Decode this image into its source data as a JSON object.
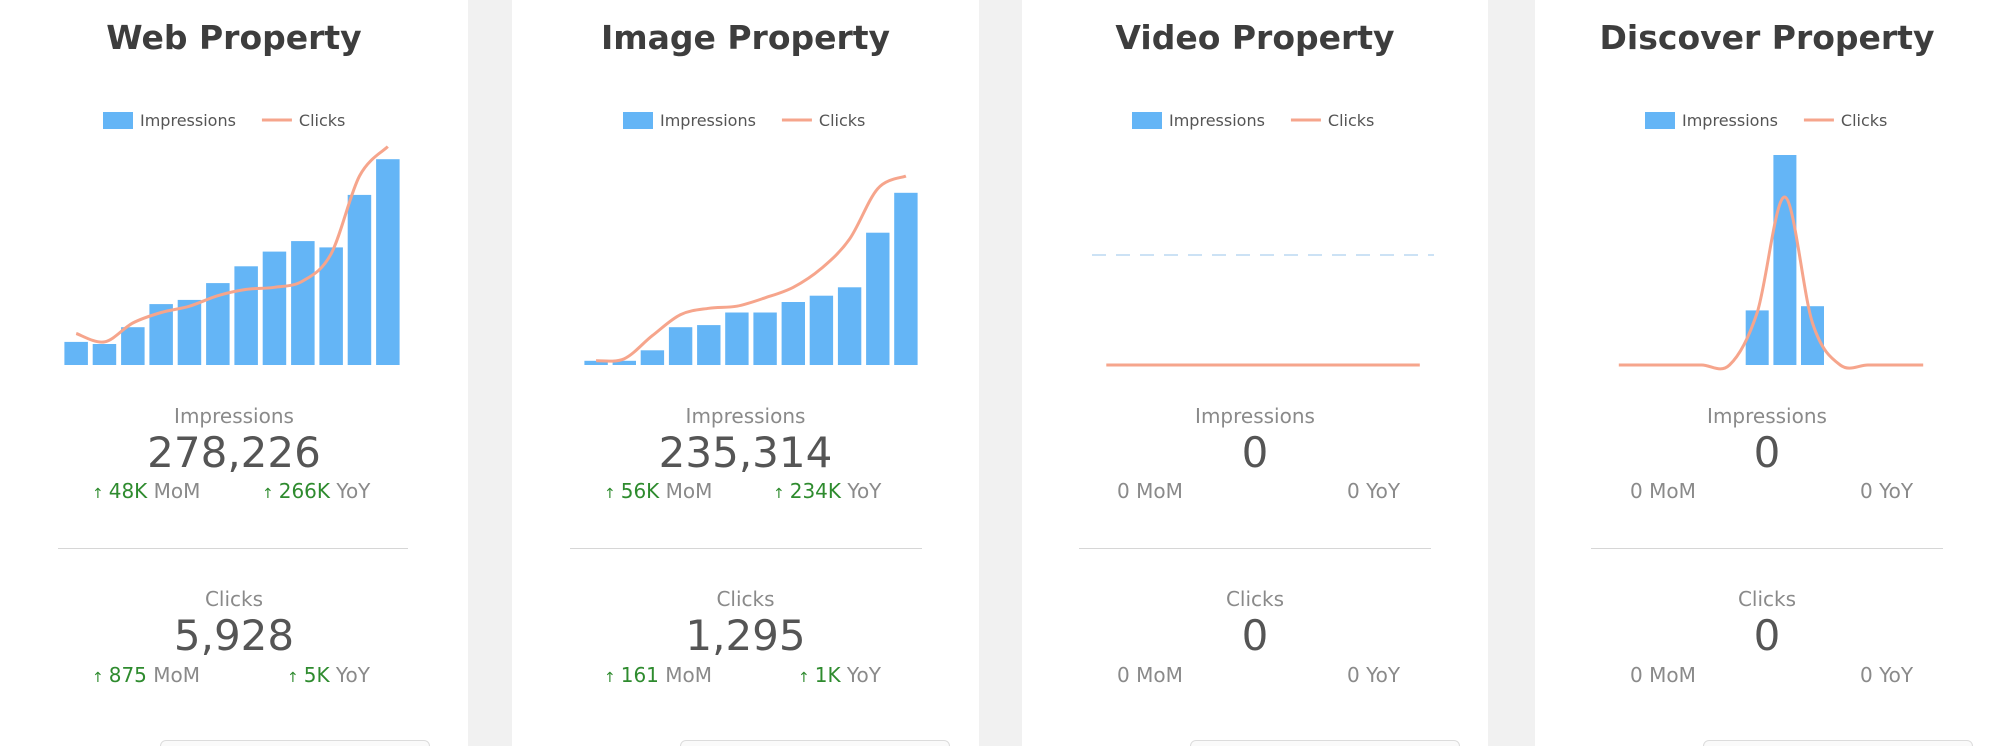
{
  "colors": {
    "impressions": "#64b5f6",
    "clicks": "#f6a58c",
    "up": "#2e8b2e"
  },
  "icons": {
    "up_arrow": "up-arrow-icon"
  },
  "cards": [
    {
      "title": "Web Property",
      "impressions": {
        "label": "Impressions",
        "value": "278,226",
        "mom": {
          "arrow": "↑",
          "num": "48K",
          "text": " MoM"
        },
        "yoy": {
          "arrow": "↑",
          "num": "266K",
          "text": " YoY"
        }
      },
      "clicks": {
        "label": "Clicks",
        "value": "5,928",
        "mom": {
          "arrow": "↑",
          "num": "875",
          "text": " MoM"
        },
        "yoy": {
          "arrow": "↑",
          "num": "5K",
          "text": " YoY"
        }
      }
    },
    {
      "title": "Image Property",
      "impressions": {
        "label": "Impressions",
        "value": "235,314",
        "mom": {
          "arrow": "↑",
          "num": "56K",
          "text": " MoM"
        },
        "yoy": {
          "arrow": "↑",
          "num": "234K",
          "text": " YoY"
        }
      },
      "clicks": {
        "label": "Clicks",
        "value": "1,295",
        "mom": {
          "arrow": "↑",
          "num": "161",
          "text": " MoM"
        },
        "yoy": {
          "arrow": "↑",
          "num": "1K",
          "text": " YoY"
        }
      }
    },
    {
      "title": "Video Property",
      "impressions": {
        "label": "Impressions",
        "value": "0",
        "mom": {
          "arrow": "",
          "num": "",
          "text": "0 MoM"
        },
        "yoy": {
          "arrow": "",
          "num": "",
          "text": "0 YoY"
        }
      },
      "clicks": {
        "label": "Clicks",
        "value": "0",
        "mom": {
          "arrow": "",
          "num": "",
          "text": "0 MoM"
        },
        "yoy": {
          "arrow": "",
          "num": "",
          "text": "0 YoY"
        }
      }
    },
    {
      "title": "Discover Property",
      "impressions": {
        "label": "Impressions",
        "value": "0",
        "mom": {
          "arrow": "",
          "num": "",
          "text": "0 MoM"
        },
        "yoy": {
          "arrow": "",
          "num": "",
          "text": "0 YoY"
        }
      },
      "clicks": {
        "label": "Clicks",
        "value": "0",
        "mom": {
          "arrow": "",
          "num": "",
          "text": "0 MoM"
        },
        "yoy": {
          "arrow": "",
          "num": "",
          "text": "0 YoY"
        }
      }
    }
  ],
  "chart_data": [
    {
      "type": "bar",
      "title": "Web Property",
      "legend": [
        "Impressions",
        "Clicks"
      ],
      "legend_position": "top",
      "grid": false,
      "ylim": [
        0,
        100
      ],
      "series": [
        {
          "name": "Impressions",
          "type": "bar",
          "values": [
            11,
            10,
            18,
            29,
            31,
            39,
            47,
            54,
            59,
            56,
            81,
            98
          ]
        },
        {
          "name": "Clicks",
          "type": "line",
          "values": [
            15,
            11,
            20,
            25,
            28,
            33,
            36,
            37,
            40,
            53,
            90,
            104
          ]
        }
      ]
    },
    {
      "type": "bar",
      "title": "Image Property",
      "legend": [
        "Impressions",
        "Clicks"
      ],
      "legend_position": "top",
      "grid": false,
      "ylim": [
        0,
        100
      ],
      "series": [
        {
          "name": "Impressions",
          "type": "bar",
          "values": [
            2,
            2,
            7,
            18,
            19,
            25,
            25,
            30,
            33,
            37,
            63,
            82
          ]
        },
        {
          "name": "Clicks",
          "type": "line",
          "values": [
            2,
            3,
            14,
            24,
            27,
            28,
            32,
            37,
            46,
            60,
            84,
            90
          ]
        }
      ]
    },
    {
      "type": "bar",
      "title": "Video Property",
      "legend": [
        "Impressions",
        "Clicks"
      ],
      "legend_position": "top",
      "grid": false,
      "ylim": [
        -1,
        1
      ],
      "series": [
        {
          "name": "Impressions",
          "type": "bar",
          "values": [
            0,
            0,
            0,
            0,
            0,
            0,
            0,
            0,
            0,
            0,
            0,
            0
          ]
        },
        {
          "name": "Clicks",
          "type": "line",
          "values": [
            0,
            0,
            0,
            0,
            0,
            0,
            0,
            0,
            0,
            0,
            0,
            0
          ]
        }
      ]
    },
    {
      "type": "bar",
      "title": "Discover Property",
      "legend": [
        "Impressions",
        "Clicks"
      ],
      "legend_position": "top",
      "grid": false,
      "ylim": [
        0,
        100
      ],
      "series": [
        {
          "name": "Impressions",
          "type": "bar",
          "values": [
            0,
            0,
            0,
            0,
            0,
            26,
            100,
            28,
            0,
            0,
            0,
            0
          ]
        },
        {
          "name": "Clicks",
          "type": "line",
          "values": [
            0,
            0,
            0,
            0,
            0,
            25,
            80,
            20,
            0,
            0,
            0,
            0
          ]
        }
      ]
    }
  ]
}
